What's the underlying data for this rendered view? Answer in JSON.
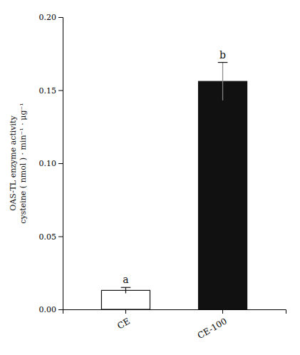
{
  "chart_data": {
    "type": "bar",
    "categories": [
      "CE",
      "CE-100"
    ],
    "values": [
      0.013,
      0.156
    ],
    "errors": [
      0.002,
      0.013
    ],
    "colors": [
      "#ffffff",
      "#111111"
    ],
    "annotations": [
      "a",
      "b"
    ],
    "ylabel": "OAS-TL enzyme activity\ncysteine ( nmol ) · min⁻¹ · μg⁻¹",
    "ylim": [
      0.0,
      0.2
    ],
    "yticks": [
      {
        "value": 0,
        "label": "0.00"
      },
      0.05,
      {
        "value": 0.1,
        "label": "0.10"
      },
      0.15,
      {
        "value": 0.2,
        "label": "0.20"
      }
    ],
    "grid": false
  }
}
